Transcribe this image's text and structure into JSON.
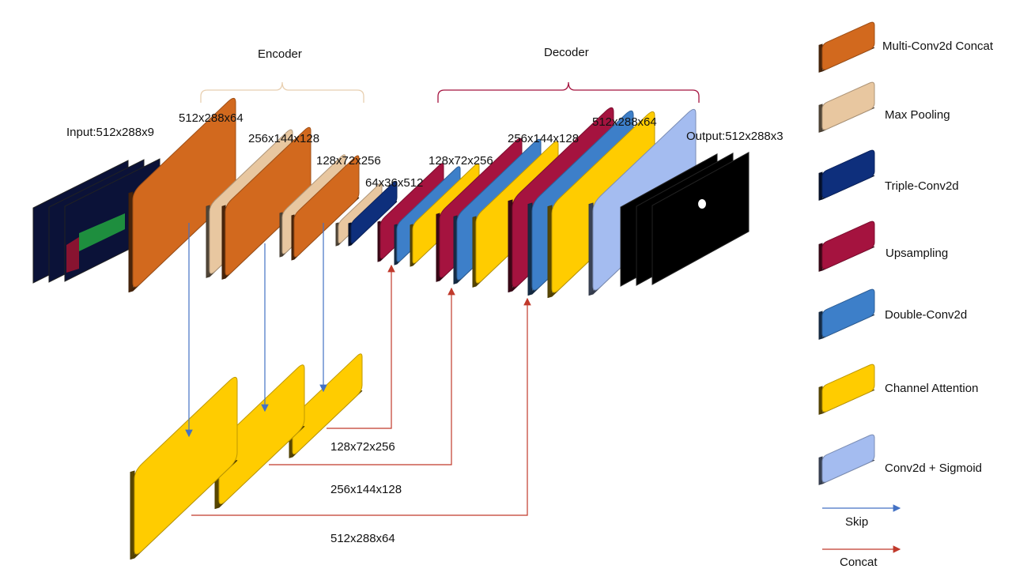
{
  "colors": {
    "orange": "#D2691E",
    "beige": "#E8C7A0",
    "navy": "#0E2F7C",
    "crimson": "#A5133F",
    "blue": "#3D7FC9",
    "yellow": "#FFCC00",
    "lightblue": "#A4BCF0",
    "black": "#000000",
    "skip_arrow": "#4472C4",
    "concat_arrow": "#C0392B",
    "encoder_brace": "#E8CFB0",
    "decoder_brace": "#A5133F"
  },
  "diagram": {
    "encoder_label": "Encoder",
    "decoder_label": "Decoder",
    "input_label": "Input:512x288x9",
    "output_label": "Output:512x288x3",
    "dims": {
      "enc1": "512x288x64",
      "enc2": "256x144x128",
      "enc3": "128x72x256",
      "bottleneck": "64x36x512",
      "dec1": "128x72x256",
      "dec2": "256x144x128",
      "dec3": "512x288x64",
      "skip1": "128x72x256",
      "skip2": "256x144x128",
      "skip3": "512x288x64"
    }
  },
  "legend": {
    "items": [
      {
        "label": "Multi-Conv2d  Concat",
        "color": "orange",
        "icon": "orange-block-icon"
      },
      {
        "label": "Max Pooling",
        "color": "beige",
        "icon": "beige-block-icon"
      },
      {
        "label": "Triple-Conv2d",
        "color": "navy",
        "icon": "navy-block-icon"
      },
      {
        "label": "Upsampling",
        "color": "crimson",
        "icon": "crimson-block-icon"
      },
      {
        "label": "Double-Conv2d",
        "color": "blue",
        "icon": "blue-block-icon"
      },
      {
        "label": "Channel Attention",
        "color": "yellow",
        "icon": "yellow-block-icon"
      },
      {
        "label": "Conv2d + Sigmoid",
        "color": "lightblue",
        "icon": "lightblue-block-icon"
      }
    ],
    "skip_label": "Skip",
    "concat_label": "Concat"
  }
}
